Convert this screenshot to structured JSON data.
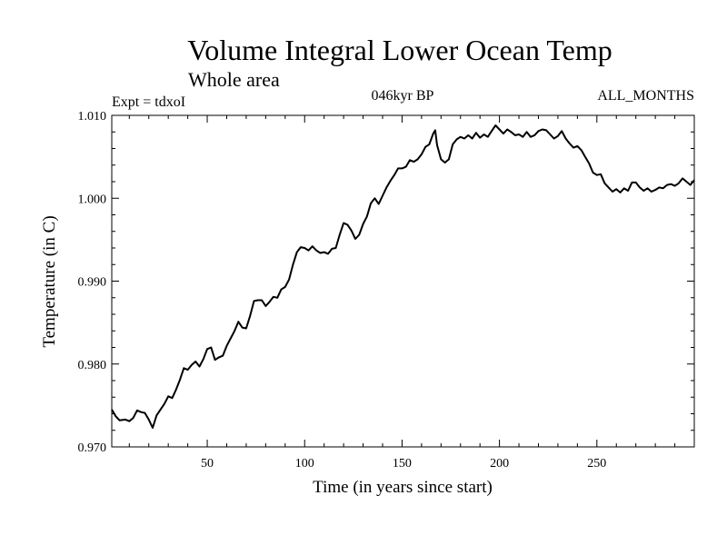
{
  "chart_data": {
    "type": "line",
    "title": "Volume Integral Lower Ocean Temp",
    "subtitle": "Whole area",
    "experiment_label": "Expt = tdxoI",
    "period_label": "046kyr BP",
    "months_label": "ALL_MONTHS",
    "xlabel": "Time (in years since start)",
    "ylabel": "Temperature (in C)",
    "xlim": [
      1,
      300
    ],
    "ylim": [
      0.97,
      1.01
    ],
    "x_ticks": [
      50,
      100,
      150,
      200,
      250
    ],
    "x_tick_labels": [
      "50",
      "100",
      "150",
      "200",
      "250"
    ],
    "y_ticks": [
      0.97,
      0.98,
      0.99,
      1.0,
      1.01
    ],
    "y_tick_labels": [
      "0.970",
      "0.980",
      "0.990",
      "1.000",
      "1.010"
    ],
    "grid": false,
    "series": [
      {
        "color": "#000000",
        "x": [
          1,
          3,
          5,
          8,
          10,
          12,
          14,
          16,
          18,
          20,
          22,
          24,
          26,
          28,
          30,
          32,
          34,
          36,
          38,
          40,
          42,
          44,
          46,
          48,
          50,
          52,
          54,
          56,
          58,
          60,
          62,
          64,
          66,
          68,
          70,
          72,
          74,
          76,
          78,
          80,
          82,
          84,
          86,
          88,
          90,
          92,
          94,
          96,
          98,
          100,
          102,
          104,
          106,
          108,
          110,
          112,
          114,
          116,
          118,
          120,
          122,
          124,
          126,
          128,
          130,
          132,
          134,
          136,
          138,
          140,
          142,
          144,
          146,
          148,
          150,
          152,
          154,
          156,
          158,
          160,
          162,
          164,
          166,
          167,
          168,
          170,
          172,
          174,
          176,
          178,
          180,
          182,
          184,
          186,
          188,
          190,
          192,
          194,
          196,
          198,
          200,
          202,
          204,
          206,
          208,
          210,
          212,
          214,
          216,
          218,
          220,
          222,
          224,
          226,
          228,
          230,
          232,
          234,
          236,
          238,
          240,
          242,
          244,
          246,
          248,
          250,
          252,
          254,
          256,
          258,
          260,
          262,
          264,
          266,
          268,
          270,
          272,
          274,
          276,
          278,
          280,
          282,
          284,
          286,
          288,
          290,
          292,
          294,
          296,
          298,
          300
        ],
        "y": [
          0.9745,
          0.9737,
          0.9732,
          0.9733,
          0.9731,
          0.9735,
          0.9744,
          0.9742,
          0.9741,
          0.9733,
          0.9723,
          0.9738,
          0.9745,
          0.9752,
          0.9761,
          0.9759,
          0.9769,
          0.9781,
          0.9795,
          0.9793,
          0.9799,
          0.9803,
          0.9797,
          0.9806,
          0.9818,
          0.982,
          0.9805,
          0.9808,
          0.981,
          0.9822,
          0.9831,
          0.984,
          0.9851,
          0.9844,
          0.9843,
          0.9858,
          0.9876,
          0.9877,
          0.9877,
          0.987,
          0.9875,
          0.9881,
          0.988,
          0.989,
          0.9893,
          0.9902,
          0.992,
          0.9935,
          0.9941,
          0.994,
          0.9937,
          0.9942,
          0.9937,
          0.9934,
          0.9935,
          0.9933,
          0.9939,
          0.994,
          0.9956,
          0.997,
          0.9968,
          0.9961,
          0.9951,
          0.9956,
          0.9969,
          0.9978,
          0.9994,
          1.0,
          0.9993,
          1.0003,
          1.0013,
          1.0021,
          1.0028,
          1.0036,
          1.0036,
          1.0038,
          1.0046,
          1.0044,
          1.0047,
          1.0053,
          1.0062,
          1.0065,
          1.0078,
          1.0082,
          1.0064,
          1.0047,
          1.0043,
          1.0047,
          1.0065,
          1.0071,
          1.0074,
          1.0072,
          1.0076,
          1.0072,
          1.0079,
          1.0073,
          1.0077,
          1.0074,
          1.0081,
          1.0088,
          1.0083,
          1.0078,
          1.0083,
          1.008,
          1.0076,
          1.0077,
          1.0074,
          1.008,
          1.0074,
          1.0076,
          1.0081,
          1.0083,
          1.0082,
          1.0077,
          1.0072,
          1.0075,
          1.0081,
          1.0072,
          1.0066,
          1.0061,
          1.0063,
          1.0058,
          1.005,
          1.0042,
          1.0031,
          1.0028,
          1.0029,
          1.0018,
          1.0013,
          1.0008,
          1.0011,
          1.0007,
          1.0012,
          1.0009,
          1.0019,
          1.0019,
          1.0013,
          1.0009,
          1.0012,
          1.0008,
          1.001,
          1.0013,
          1.0012,
          1.0016,
          1.0017,
          1.0015,
          1.0018,
          1.0024,
          1.002,
          1.0016,
          1.0022
        ]
      }
    ]
  }
}
